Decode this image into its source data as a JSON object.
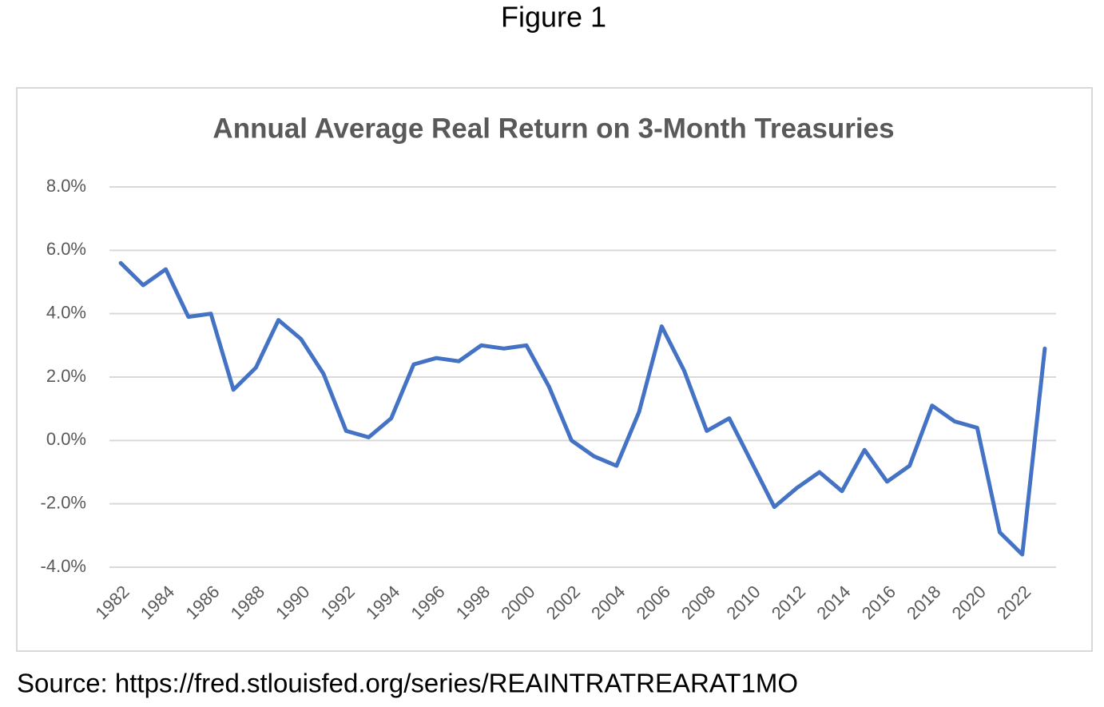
{
  "figure_title": "Figure 1",
  "source": "Source: https://fred.stlouisfed.org/series/REAINTRATREARAT1MO",
  "chart_data": {
    "type": "line",
    "title": "Annual Average Real Return on 3-Month Treasuries",
    "categories": [
      "1982",
      null,
      "1984",
      null,
      "1986",
      null,
      "1988",
      null,
      "1990",
      null,
      "1992",
      null,
      "1994",
      null,
      "1996",
      null,
      "1998",
      null,
      "2000",
      null,
      "2002",
      null,
      "2004",
      null,
      "2006",
      null,
      "2008",
      null,
      "2010",
      null,
      "2012",
      null,
      "2014",
      null,
      "2016",
      null,
      "2018",
      null,
      "2020",
      null,
      "2022",
      null
    ],
    "values": [
      5.6,
      4.9,
      5.4,
      3.9,
      4.0,
      1.6,
      2.3,
      3.8,
      3.2,
      2.1,
      0.3,
      0.1,
      0.7,
      2.4,
      2.6,
      2.5,
      3.0,
      2.9,
      3.0,
      1.7,
      0.0,
      -0.5,
      -0.8,
      0.9,
      3.6,
      2.2,
      0.3,
      0.7,
      -0.7,
      -2.1,
      -1.5,
      -1.0,
      -1.6,
      -0.3,
      -1.3,
      -0.8,
      1.1,
      0.6,
      0.4,
      -2.9,
      -3.6,
      2.9
    ],
    "color": "#4472c4",
    "ylim": [
      -4,
      8
    ],
    "yticks": [
      {
        "value": -4,
        "label": "-4.0%"
      },
      {
        "value": -2,
        "label": "-2.0%"
      },
      {
        "value": 0,
        "label": "0.0%"
      },
      {
        "value": 2,
        "label": "2.0%"
      },
      {
        "value": 4,
        "label": "4.0%"
      },
      {
        "value": 6,
        "label": "6.0%"
      },
      {
        "value": 8,
        "label": "8.0%"
      }
    ],
    "grid": true
  }
}
